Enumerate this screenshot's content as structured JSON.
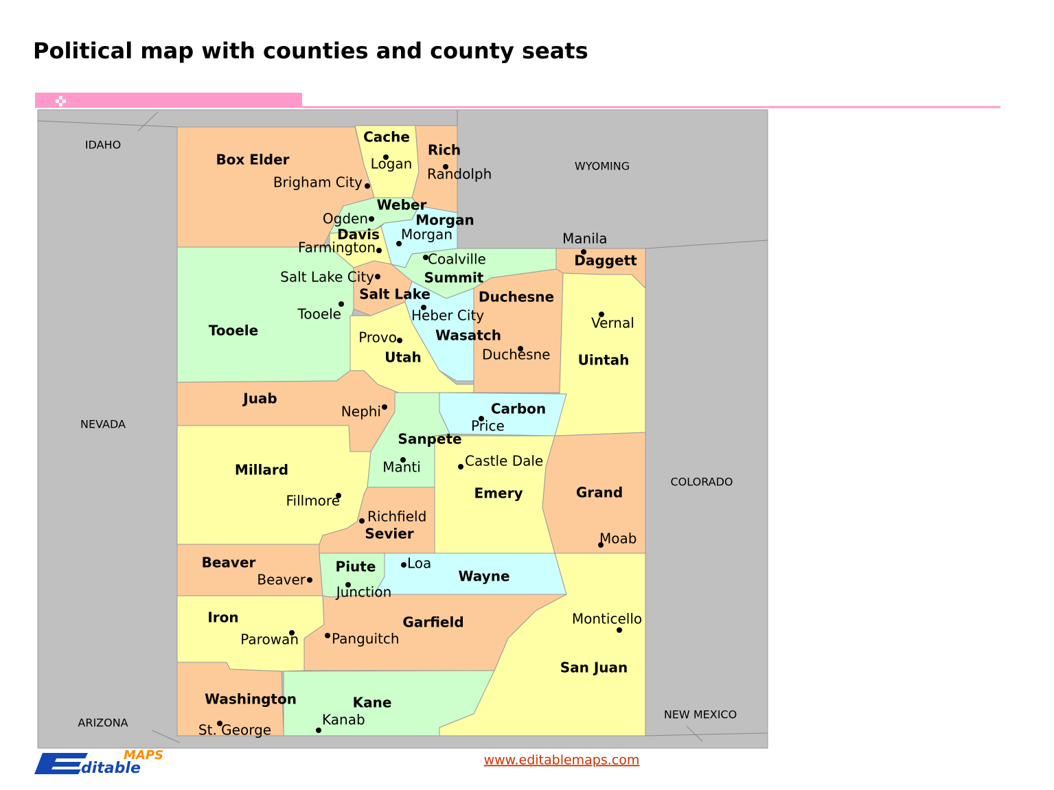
{
  "map": {
    "title": "Political map with counties and county seats",
    "neighbors": [
      "IDAHO",
      "WYOMING",
      "NEVADA",
      "COLORADO",
      "ARIZONA",
      "NEW MEXICO"
    ],
    "counties": [
      {
        "name": "Box Elder",
        "seat": "Brigham City",
        "color": "#fdcb9a"
      },
      {
        "name": "Cache",
        "seat": "Logan",
        "color": "#ffffa6"
      },
      {
        "name": "Rich",
        "seat": "Randolph",
        "color": "#fdcb9a"
      },
      {
        "name": "Weber",
        "seat": "Ogden",
        "color": "#ccffcc"
      },
      {
        "name": "Morgan",
        "seat": "Morgan",
        "color": "#ccffff"
      },
      {
        "name": "Davis",
        "seat": "Farmington",
        "color": "#ffffa6"
      },
      {
        "name": "Summit",
        "seat": "Coalville",
        "color": "#ccffcc"
      },
      {
        "name": "Daggett",
        "seat": "Manila",
        "color": "#fdcb9a"
      },
      {
        "name": "Salt Lake",
        "seat": "Salt Lake City",
        "color": "#fdcb9a"
      },
      {
        "name": "Tooele",
        "seat": "Tooele",
        "color": "#ccffcc"
      },
      {
        "name": "Utah",
        "seat": "Provo",
        "color": "#ffffa6"
      },
      {
        "name": "Wasatch",
        "seat": "Heber City",
        "color": "#ccffff"
      },
      {
        "name": "Duchesne",
        "seat": "Duchesne",
        "color": "#fdcb9a"
      },
      {
        "name": "Uintah",
        "seat": "Vernal",
        "color": "#ffffa6"
      },
      {
        "name": "Juab",
        "seat": "Nephi",
        "color": "#fdcb9a"
      },
      {
        "name": "Carbon",
        "seat": "Price",
        "color": "#ccffff"
      },
      {
        "name": "Sanpete",
        "seat": "Manti",
        "color": "#ccffcc"
      },
      {
        "name": "Millard",
        "seat": "Fillmore",
        "color": "#ffffa6"
      },
      {
        "name": "Emery",
        "seat": "Castle Dale",
        "color": "#ffffa6"
      },
      {
        "name": "Grand",
        "seat": "Moab",
        "color": "#fdcb9a"
      },
      {
        "name": "Sevier",
        "seat": "Richfield",
        "color": "#fdcb9a"
      },
      {
        "name": "Beaver",
        "seat": "Beaver",
        "color": "#fdcb9a"
      },
      {
        "name": "Piute",
        "seat": "Junction",
        "color": "#ccffcc"
      },
      {
        "name": "Wayne",
        "seat": "Loa",
        "color": "#ccffff"
      },
      {
        "name": "Iron",
        "seat": "Parowan",
        "color": "#ffffa6"
      },
      {
        "name": "Garfield",
        "seat": "Panguitch",
        "color": "#fdcb9a"
      },
      {
        "name": "Washington",
        "seat": "St. George",
        "color": "#fdcb9a"
      },
      {
        "name": "Kane",
        "seat": "Kanab",
        "color": "#ccffcc"
      },
      {
        "name": "San Juan",
        "seat": "Monticello",
        "color": "#ffffa6"
      }
    ]
  },
  "logo": {
    "letter": "E",
    "top": "MAPS",
    "bottom": "ditable"
  },
  "footer": {
    "url": "www.editablemaps.com"
  }
}
